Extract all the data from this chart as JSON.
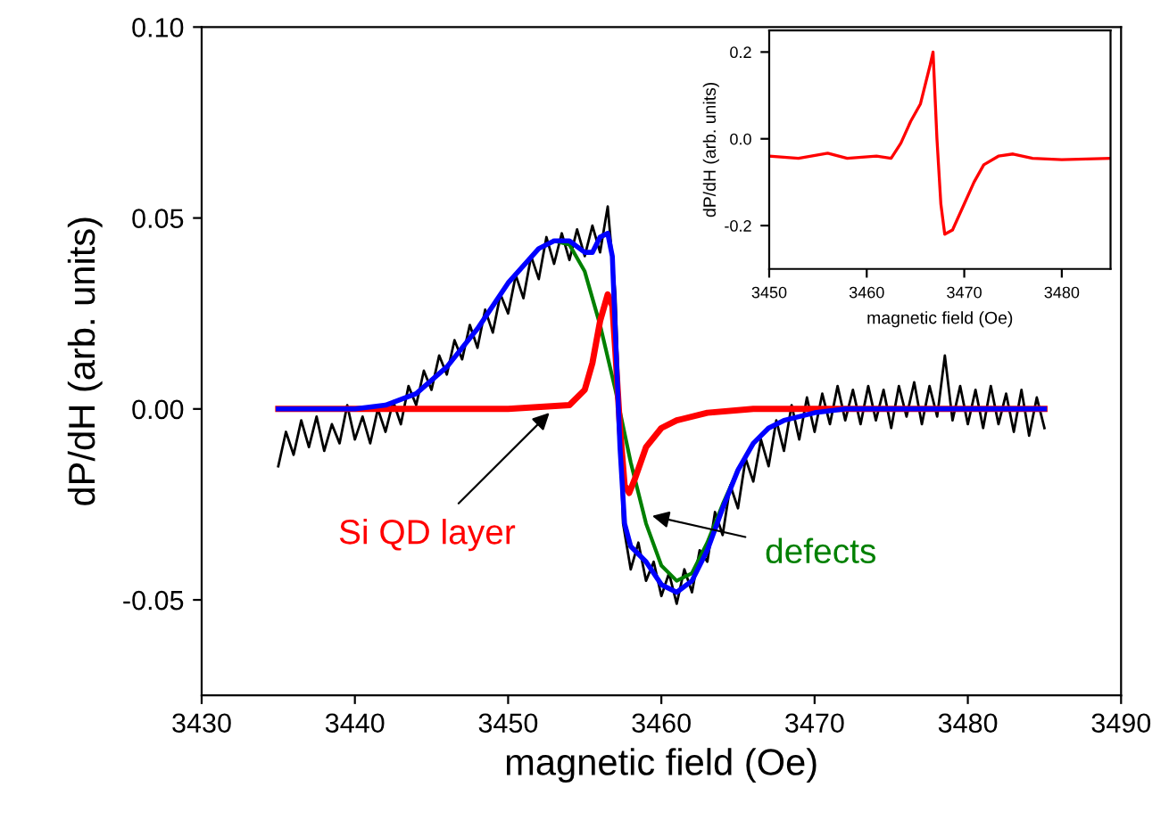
{
  "chart_data": [
    {
      "type": "line",
      "xlabel": "magnetic field (Oe)",
      "ylabel": "dP/dH (arb. units)",
      "xlim": [
        3430,
        3490
      ],
      "xticks": [
        3430,
        3440,
        3450,
        3460,
        3470,
        3480,
        3490
      ],
      "ylim": [
        -0.075,
        0.1
      ],
      "yticks": [
        {
          "value": 0.1,
          "label": "0.10"
        },
        {
          "value": 0.05,
          "label": "0.05"
        },
        {
          "value": 0,
          "label": "0.00"
        },
        {
          "value": -0.05,
          "label": "-0.05"
        }
      ],
      "grid": false,
      "legend": false,
      "marker": "none",
      "line_style": "solid",
      "annotations": [
        {
          "text": "Si QD layer",
          "x": 3452.7,
          "y": -0.001
        },
        {
          "text": "defects",
          "x": 3459.4,
          "y": -0.028
        }
      ],
      "series": [
        {
          "color": "#000000",
          "x": [
            3435,
            3435.5,
            3436,
            3436.5,
            3437,
            3437.5,
            3438,
            3438.5,
            3439,
            3439.5,
            3440,
            3440.5,
            3441,
            3441.5,
            3442,
            3442.5,
            3443,
            3443.5,
            3444,
            3444.5,
            3445,
            3445.5,
            3446,
            3446.5,
            3447,
            3447.5,
            3448,
            3448.5,
            3449,
            3449.5,
            3450,
            3450.5,
            3451,
            3451.5,
            3452,
            3452.5,
            3453,
            3453.5,
            3454,
            3454.5,
            3455,
            3455.5,
            3456,
            3456.5,
            3457,
            3457.5,
            3458,
            3458.5,
            3459,
            3459.5,
            3460,
            3460.5,
            3461,
            3461.5,
            3462,
            3462.5,
            3463,
            3463.5,
            3464,
            3464.5,
            3465,
            3465.5,
            3466,
            3466.5,
            3467,
            3467.5,
            3468,
            3468.5,
            3469,
            3469.5,
            3470,
            3470.5,
            3471,
            3471.5,
            3472,
            3472.5,
            3473,
            3473.5,
            3474,
            3474.5,
            3475,
            3475.5,
            3476,
            3476.5,
            3477,
            3477.5,
            3478,
            3478.5,
            3479,
            3479.5,
            3480,
            3480.5,
            3481,
            3481.5,
            3482,
            3482.5,
            3483,
            3483.5,
            3484,
            3484.5,
            3485
          ],
          "values": [
            -0.015,
            -0.006,
            -0.012,
            -0.003,
            -0.01,
            -0.002,
            -0.011,
            -0.004,
            -0.009,
            0.001,
            -0.008,
            -0.002,
            -0.009,
            0.0,
            -0.006,
            0.002,
            -0.004,
            0.006,
            0.001,
            0.01,
            0.005,
            0.014,
            0.009,
            0.018,
            0.013,
            0.022,
            0.016,
            0.026,
            0.02,
            0.03,
            0.025,
            0.035,
            0.029,
            0.04,
            0.034,
            0.045,
            0.038,
            0.046,
            0.039,
            0.047,
            0.04,
            0.048,
            0.041,
            0.053,
            0.03,
            -0.03,
            -0.042,
            -0.035,
            -0.045,
            -0.04,
            -0.049,
            -0.043,
            -0.051,
            -0.042,
            -0.048,
            -0.037,
            -0.04,
            -0.027,
            -0.033,
            -0.02,
            -0.026,
            -0.013,
            -0.019,
            -0.008,
            -0.015,
            -0.003,
            -0.011,
            0.001,
            -0.008,
            0.003,
            -0.006,
            0.004,
            -0.004,
            0.006,
            -0.003,
            0.005,
            -0.004,
            0.006,
            -0.003,
            0.005,
            -0.005,
            0.006,
            -0.002,
            0.007,
            -0.004,
            0.006,
            -0.002,
            0.014,
            -0.003,
            0.006,
            -0.004,
            0.005,
            -0.005,
            0.006,
            -0.004,
            0.004,
            -0.006,
            0.005,
            -0.007,
            0.003,
            -0.005
          ]
        },
        {
          "color": "#008000",
          "x": [
            3453,
            3454,
            3455,
            3456,
            3457,
            3458,
            3459,
            3460,
            3461,
            3462,
            3463,
            3464,
            3465
          ],
          "values": [
            0.044,
            0.043,
            0.036,
            0.022,
            0.005,
            -0.014,
            -0.03,
            -0.041,
            -0.045,
            -0.043,
            -0.035,
            -0.025,
            -0.016
          ]
        },
        {
          "color": "#ff0000",
          "x": [
            3435,
            3450,
            3454,
            3455,
            3455.5,
            3456,
            3456.5,
            3456.8,
            3457,
            3457.3,
            3457.6,
            3457.9,
            3458.3,
            3459,
            3460,
            3461,
            3463,
            3466,
            3485
          ],
          "values": [
            0,
            0,
            0.001,
            0.005,
            0.012,
            0.023,
            0.03,
            0.027,
            0.015,
            -0.005,
            -0.02,
            -0.022,
            -0.018,
            -0.01,
            -0.005,
            -0.003,
            -0.001,
            0,
            0
          ]
        },
        {
          "color": "#0000ff",
          "x": [
            3435,
            3440,
            3442,
            3444,
            3446,
            3448,
            3450,
            3452,
            3453,
            3454,
            3455,
            3455.5,
            3456,
            3456.5,
            3456.8,
            3457,
            3457.3,
            3457.6,
            3458,
            3459,
            3460,
            3461,
            3462,
            3463,
            3464,
            3465,
            3466,
            3467,
            3468,
            3470,
            3472,
            3485
          ],
          "values": [
            0,
            0,
            0.001,
            0.004,
            0.011,
            0.021,
            0.033,
            0.042,
            0.044,
            0.044,
            0.041,
            0.041,
            0.045,
            0.046,
            0.04,
            0.02,
            -0.01,
            -0.03,
            -0.036,
            -0.04,
            -0.046,
            -0.048,
            -0.045,
            -0.037,
            -0.026,
            -0.016,
            -0.009,
            -0.005,
            -0.003,
            -0.001,
            0,
            0
          ]
        }
      ]
    },
    {
      "type": "line",
      "xlabel": "magnetic field (Oe)",
      "ylabel": "dP/dH (arb. units)",
      "xlim": [
        3450,
        3485
      ],
      "xticks": [
        3450,
        3460,
        3470,
        3480
      ],
      "ylim": [
        -0.3,
        0.25
      ],
      "yticks": [
        {
          "value": 0.2,
          "label": "0.2"
        },
        {
          "value": 0,
          "label": "0.0"
        },
        {
          "value": -0.2,
          "label": "-0.2"
        }
      ],
      "grid": false,
      "legend": false,
      "marker": "none",
      "line_style": "solid",
      "series": [
        {
          "color": "#ff0000",
          "x": [
            3450,
            3453,
            3456,
            3458,
            3461,
            3462.5,
            3463.5,
            3464.5,
            3465.5,
            3466.5,
            3466.8,
            3467.2,
            3467.6,
            3468,
            3468.8,
            3470,
            3471,
            3472,
            3473.5,
            3475,
            3477,
            3480,
            3485
          ],
          "values": [
            -0.04,
            -0.045,
            -0.033,
            -0.045,
            -0.04,
            -0.045,
            -0.01,
            0.04,
            0.08,
            0.17,
            0.2,
            0.0,
            -0.15,
            -0.22,
            -0.21,
            -0.15,
            -0.1,
            -0.06,
            -0.04,
            -0.035,
            -0.045,
            -0.048,
            -0.045
          ]
        }
      ]
    }
  ]
}
